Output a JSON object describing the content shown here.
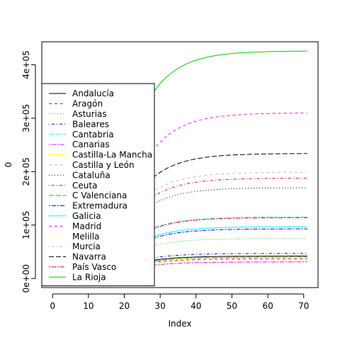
{
  "chart_data": {
    "type": "line",
    "title": "",
    "xlabel": "Index",
    "ylabel": "0",
    "xlim": [
      -3,
      74
    ],
    "ylim": [
      -17000,
      443000
    ],
    "x_ticks": [
      0,
      10,
      20,
      30,
      40,
      50,
      60,
      70
    ],
    "y_ticks": [
      0,
      100000,
      200000,
      300000,
      400000
    ],
    "y_tick_labels": [
      "0e+00",
      "1e+05",
      "2e+05",
      "3e+05",
      "4e+05"
    ],
    "x_range": [
      1,
      71
    ],
    "grid": false,
    "legend_position": "left",
    "series": [
      {
        "name": "Andalucía",
        "color": "#000000",
        "dash": "solid",
        "start": 32000,
        "end": 42000
      },
      {
        "name": "Aragón",
        "color": "#FF0000",
        "dash": "dashed",
        "start": 28000,
        "end": 37000
      },
      {
        "name": "Asturias",
        "color": "#00CD00",
        "dash": "dotted",
        "start": 57000,
        "end": 75000
      },
      {
        "name": "Baleares",
        "color": "#0000FF",
        "dash": "dotdash",
        "start": 36000,
        "end": 47000
      },
      {
        "name": "Cantabria",
        "color": "#00FFFF",
        "dash": "longdash",
        "start": 88000,
        "end": 115000
      },
      {
        "name": "Canarias",
        "color": "#FF00FF",
        "dash": "twodash",
        "start": 23000,
        "end": 31000
      },
      {
        "name": "Castilla-La Mancha",
        "color": "#FFFF00",
        "dash": "solid",
        "start": 30000,
        "end": 40000
      },
      {
        "name": "Castilla y León",
        "color": "#BEBEBE",
        "dash": "dashed",
        "start": 152000,
        "end": 199000
      },
      {
        "name": "Cataluña",
        "color": "#000000",
        "dash": "dotted",
        "start": 130000,
        "end": 170000
      },
      {
        "name": "Ceuta",
        "color": "#FF0000",
        "dash": "dotdash",
        "start": 143000,
        "end": 188000
      },
      {
        "name": "C Valenciana",
        "color": "#00CD00",
        "dash": "longdash",
        "start": 30000,
        "end": 40000
      },
      {
        "name": "Extremadura",
        "color": "#0000FF",
        "dash": "twodash",
        "start": 70000,
        "end": 93000
      },
      {
        "name": "Galicia",
        "color": "#00FFFF",
        "dash": "solid",
        "start": 73000,
        "end": 97000
      },
      {
        "name": "Madrid",
        "color": "#FF00FF",
        "dash": "dashed",
        "start": 220000,
        "end": 310000
      },
      {
        "name": "Melilla",
        "color": "#FFFF00",
        "dash": "dotted",
        "start": 27000,
        "end": 36000
      },
      {
        "name": "Murcia",
        "color": "#BEBEBE",
        "dash": "dotdash",
        "start": 30000,
        "end": 40000
      },
      {
        "name": "Navarra",
        "color": "#000000",
        "dash": "longdash",
        "start": 176000,
        "end": 234000
      },
      {
        "name": "País Vasco",
        "color": "#FF0000",
        "dash": "twodash",
        "start": 87000,
        "end": 114000
      },
      {
        "name": "La Rioja",
        "color": "#00CD00",
        "dash": "solid",
        "start": 325000,
        "end": 426000
      }
    ]
  }
}
